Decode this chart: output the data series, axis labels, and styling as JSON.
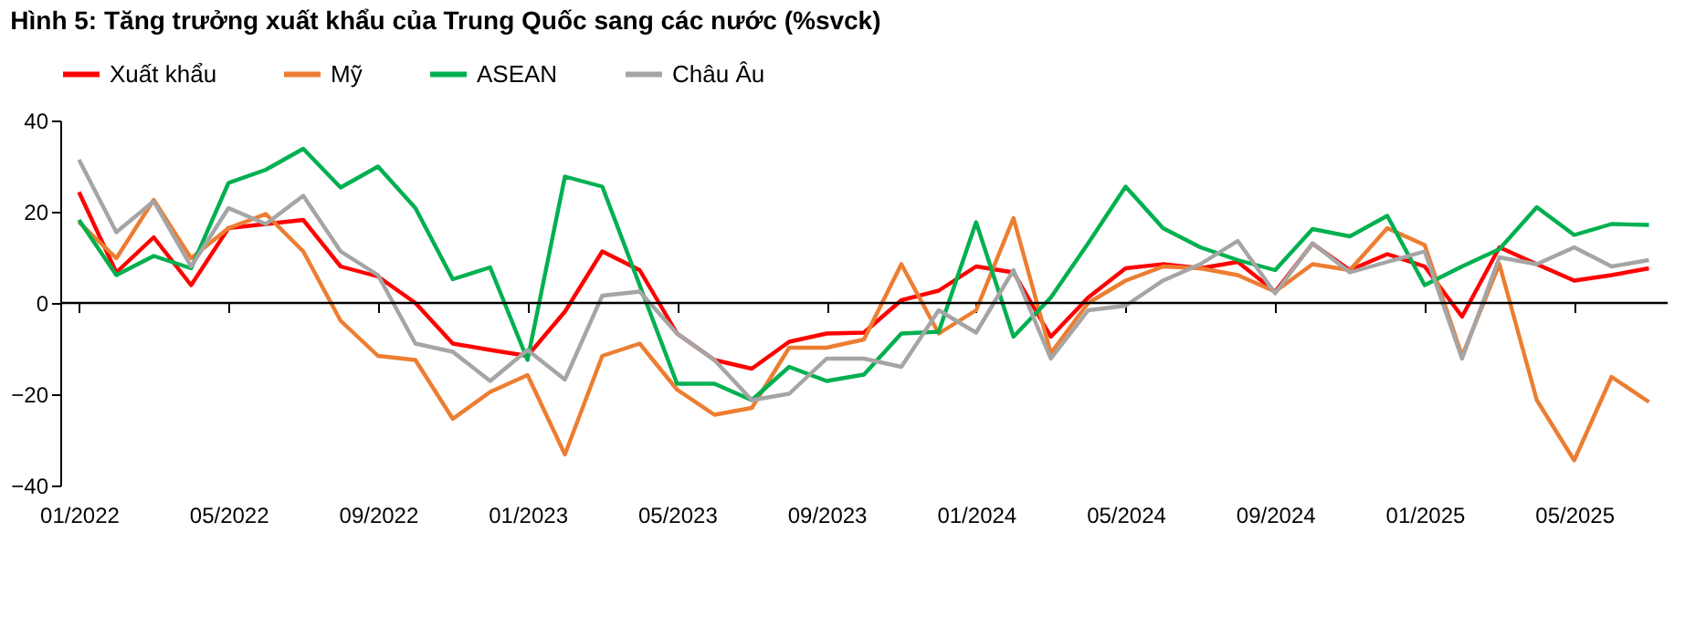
{
  "chart_data": {
    "type": "line",
    "title": "Hình 5: Tăng trưởng xuất khẩu của Trung Quốc sang các nước (%svck)",
    "categories": [
      "01/2022",
      null,
      null,
      null,
      "05/2022",
      null,
      null,
      null,
      "09/2022",
      null,
      null,
      null,
      "01/2023",
      null,
      null,
      null,
      "05/2023",
      null,
      null,
      null,
      "09/2023",
      null,
      null,
      null,
      "01/2024",
      null,
      null,
      null,
      "05/2024",
      null,
      null,
      null,
      "09/2024",
      null,
      null,
      null,
      "01/2025",
      null,
      null,
      null,
      "05/2025",
      null,
      null
    ],
    "series": [
      {
        "name": "Xuất khẩu",
        "color": "#ff0000",
        "values": [
          24.3,
          6.7,
          14.4,
          3.9,
          16.4,
          17.3,
          18.2,
          8,
          5.8,
          0,
          -8.9,
          -10.3,
          -11.6,
          -1.9,
          11.3,
          7.2,
          -6.7,
          -12.5,
          -14.4,
          -8.5,
          -6.7,
          -6.5,
          0.6,
          2.7,
          8,
          6.7,
          -7.4,
          1.2,
          7.6,
          8.5,
          7.6,
          9,
          2.5,
          13,
          7.2,
          10.7,
          8,
          -3,
          12.2,
          8.5,
          4.9,
          6.1,
          7.6
        ]
      },
      {
        "name": "Mỹ",
        "color": "#ed7d31",
        "values": [
          17.7,
          9.8,
          22.6,
          9.8,
          16.4,
          19.5,
          11.3,
          -3.9,
          -11.6,
          -12.5,
          -25.4,
          -19.5,
          -15.8,
          -33.2,
          -11.6,
          -8.9,
          -19,
          -24.5,
          -23,
          -9.8,
          -9.8,
          -8,
          8.5,
          -6.7,
          -1.6,
          18.6,
          -11,
          0,
          4.9,
          8,
          7.6,
          6.1,
          2.5,
          8.5,
          7.2,
          16.4,
          12.7,
          -11.6,
          8.5,
          -21.3,
          -34.5,
          -16.2,
          -21.7
        ]
      },
      {
        "name": "ASEAN",
        "color": "#00b050",
        "values": [
          18.2,
          6.1,
          10.3,
          7.6,
          26.3,
          29.2,
          33.8,
          25.3,
          29.9,
          20.8,
          5.2,
          7.8,
          -12.5,
          27.7,
          25.5,
          3.9,
          -17.7,
          -17.7,
          -21.3,
          -14,
          -17.1,
          -15.7,
          -6.7,
          -6.3,
          17.7,
          -7.4,
          1.2,
          13.1,
          25.5,
          16.4,
          12.2,
          9.4,
          7.2,
          16.2,
          14.6,
          19.1,
          3.9,
          8,
          11.8,
          21,
          14.9,
          17.3,
          17.1
        ]
      },
      {
        "name": "Châu Âu",
        "color": "#a5a5a5",
        "values": [
          31.4,
          15.5,
          22.3,
          8,
          20.8,
          17.3,
          23.5,
          11.3,
          6.1,
          -8.9,
          -10.7,
          -17.1,
          -10.3,
          -16.8,
          1.6,
          2.5,
          -6.7,
          -12.5,
          -21.3,
          -19.9,
          -12.2,
          -12.2,
          -14,
          -1.6,
          -6.5,
          7.2,
          -12.2,
          -1.6,
          -0.6,
          4.9,
          8.5,
          13.6,
          2.1,
          13.1,
          6.7,
          9,
          11.3,
          -12.2,
          10,
          8.5,
          12.2,
          8,
          9.4
        ]
      }
    ],
    "ylim": [
      -40,
      40
    ],
    "yticks": [
      -40,
      -20,
      0,
      20,
      40
    ],
    "ref_lines": [
      {
        "axis": "y",
        "value": 0,
        "color": "#000000"
      }
    ],
    "legend": "top",
    "grid": false,
    "line_style": "solid",
    "marker": "none"
  }
}
